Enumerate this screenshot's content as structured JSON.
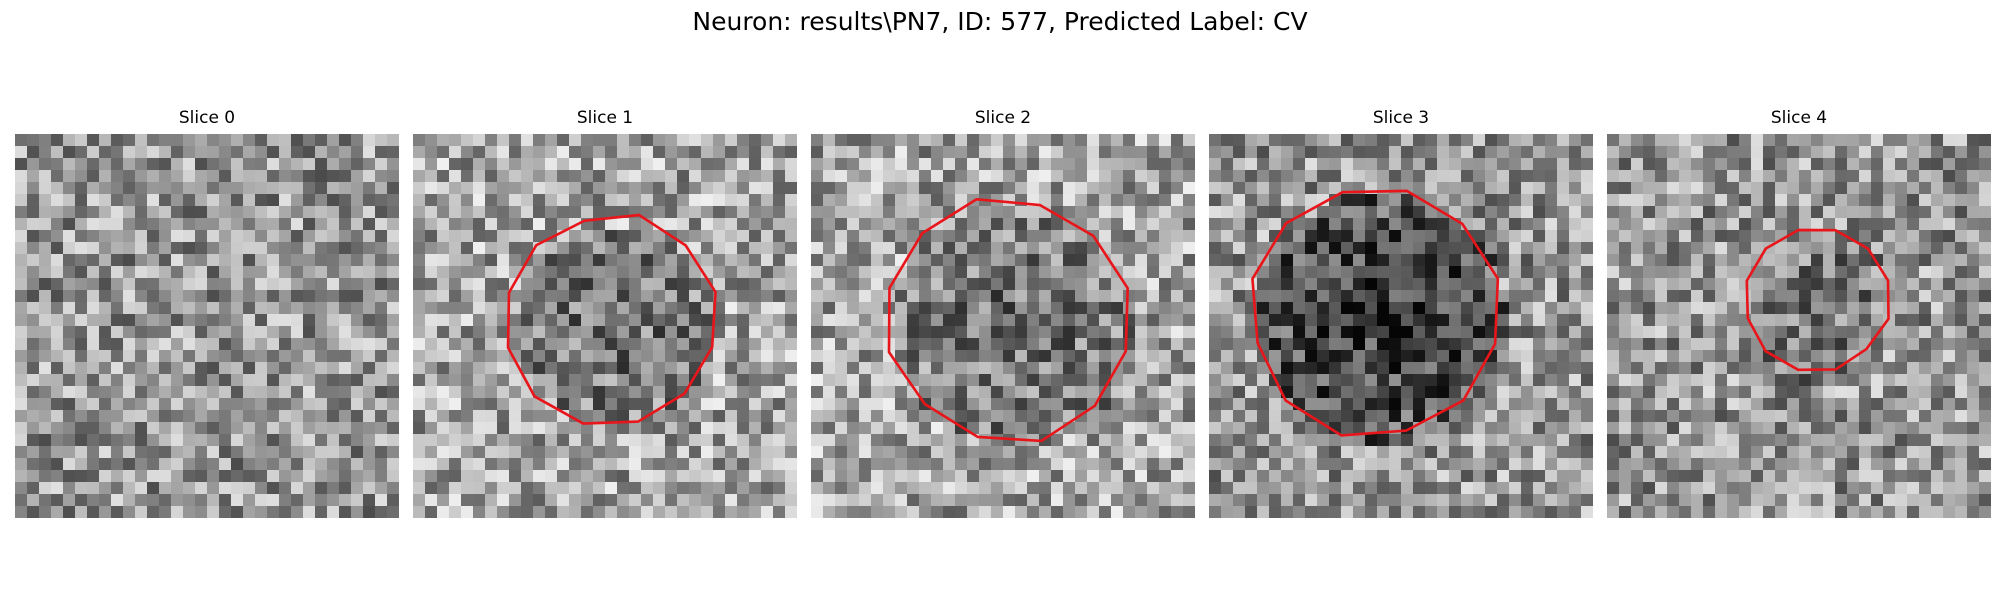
{
  "figure": {
    "title": "Neuron: results\\PN7, ID: 577, Predicted Label: CV"
  },
  "colors": {
    "contour": "#e8161b",
    "background": "#ffffff"
  },
  "grid_size": 32,
  "slices": [
    {
      "label": "Slice 0",
      "seed": 11,
      "base": 150,
      "contour": null,
      "blob": null
    },
    {
      "label": "Slice 1",
      "seed": 23,
      "base": 165,
      "contour": {
        "cx": 16.5,
        "cy": 15.5,
        "r": 8.8
      },
      "blob": {
        "cx": 16.5,
        "cy": 15.5,
        "r": 8.5,
        "depth": 55
      }
    },
    {
      "label": "Slice 2",
      "seed": 37,
      "base": 165,
      "contour": {
        "cx": 16.5,
        "cy": 15.5,
        "r": 10.2
      },
      "blob": {
        "cx": 16.5,
        "cy": 15.5,
        "r": 10,
        "depth": 55
      }
    },
    {
      "label": "Slice 3",
      "seed": 53,
      "base": 150,
      "contour": {
        "cx": 13.8,
        "cy": 14.8,
        "r": 10.4
      },
      "blob": {
        "cx": 13.8,
        "cy": 14.8,
        "r": 10.5,
        "depth": 95
      }
    },
    {
      "label": "Slice 4",
      "seed": 71,
      "base": 150,
      "contour": {
        "cx": 17.5,
        "cy": 13.8,
        "r": 6.0
      },
      "blob": {
        "cx": 17.5,
        "cy": 14.5,
        "r": 6.5,
        "depth": 35
      }
    }
  ]
}
